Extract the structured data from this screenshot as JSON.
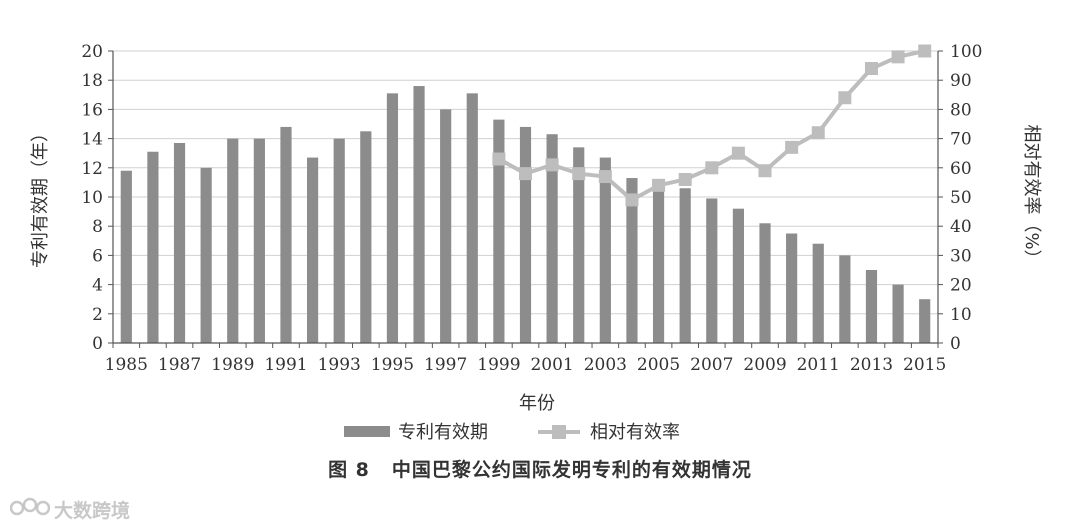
{
  "chart_data": {
    "type": "bar",
    "x": [
      1985,
      1986,
      1987,
      1988,
      1989,
      1990,
      1991,
      1992,
      1993,
      1994,
      1995,
      1996,
      1997,
      1998,
      1999,
      2000,
      2001,
      2002,
      2003,
      2004,
      2005,
      2006,
      2007,
      2008,
      2009,
      2010,
      2011,
      2012,
      2013,
      2014,
      2015
    ],
    "x_tick_labels": [
      "1985",
      "1987",
      "1989",
      "1991",
      "1993",
      "1995",
      "1997",
      "1999",
      "2001",
      "2003",
      "2005",
      "2007",
      "2009",
      "2011",
      "2013",
      "2015"
    ],
    "series": [
      {
        "name": "专利有效期",
        "type": "bar",
        "axis": "left",
        "color": "#8c8c8c",
        "values": [
          11.8,
          13.1,
          13.7,
          12.0,
          14.0,
          14.0,
          14.8,
          12.7,
          14.0,
          14.5,
          17.1,
          17.6,
          16.0,
          17.1,
          15.3,
          14.8,
          14.3,
          13.4,
          12.7,
          11.3,
          10.6,
          10.6,
          9.9,
          9.2,
          8.2,
          7.5,
          6.8,
          6.0,
          5.0,
          4.0,
          3.0
        ]
      },
      {
        "name": "相对有效率",
        "type": "line",
        "axis": "right",
        "color": "#bdbdbd",
        "x": [
          1999,
          2000,
          2001,
          2002,
          2003,
          2004,
          2005,
          2006,
          2007,
          2008,
          2009,
          2010,
          2011,
          2012,
          2013,
          2014,
          2015
        ],
        "values": [
          63,
          58,
          61,
          58,
          57,
          49,
          54,
          56,
          60,
          65,
          59,
          67,
          72,
          84,
          94,
          98,
          100
        ]
      }
    ],
    "xlabel": "年份",
    "ylabel_left": "专利有效期（年）",
    "ylabel_right": "相对有效率（%）",
    "ylim_left": [
      0,
      20
    ],
    "yticks_left": [
      "0",
      "2",
      "4",
      "6",
      "8",
      "10",
      "12",
      "14",
      "16",
      "18",
      "20"
    ],
    "ylim_right": [
      0,
      100
    ],
    "yticks_right": [
      "0",
      "10",
      "20",
      "30",
      "40",
      "50",
      "60",
      "70",
      "80",
      "90",
      "100"
    ],
    "grid": "horizontal",
    "legend_position": "bottom-center"
  },
  "caption": {
    "number": "图 8",
    "text": "中国巴黎公约国际发明专利的有效期情况"
  },
  "watermark": {
    "text": "大数跨境"
  }
}
